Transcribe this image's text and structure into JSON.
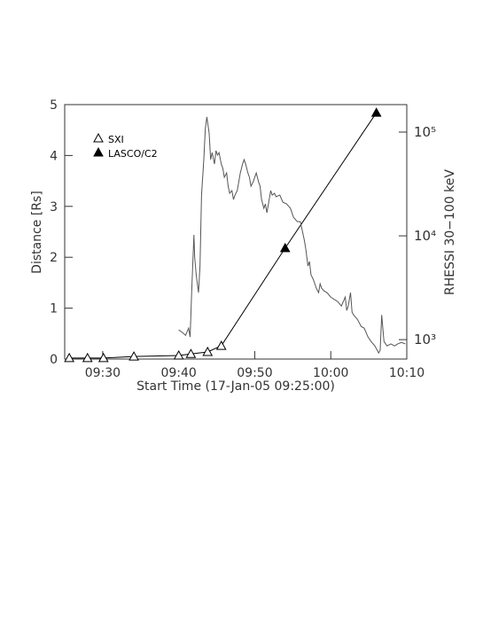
{
  "chart_data": {
    "type": "line",
    "x_label": "Start Time (17-Jan-05 09:25:00)",
    "y_label": "Distance [Rs]",
    "y2_label": "RHESSI 30−100 keV",
    "xlim": [
      0,
      45
    ],
    "xticks": [
      {
        "value": 5,
        "label": "09:30"
      },
      {
        "value": 15,
        "label": "09:40"
      },
      {
        "value": 25,
        "label": "09:50"
      },
      {
        "value": 35,
        "label": "10:00"
      },
      {
        "value": 45,
        "label": "10:10"
      }
    ],
    "ylim": [
      0,
      5
    ],
    "yticks": [
      0,
      1,
      2,
      3,
      4,
      5
    ],
    "y2lim": [
      650,
      184000
    ],
    "y2_scale": "log",
    "y2ticks": [
      {
        "value": 1000,
        "label": "10³"
      },
      {
        "value": 10000,
        "label": "10⁴"
      },
      {
        "value": 100000,
        "label": "10⁵"
      }
    ],
    "color": "#000000",
    "legend": "upper left",
    "series": [
      {
        "name": "SXI",
        "marker": "open-triangle",
        "color": "#000000",
        "x": [
          0.6,
          3.0,
          5.1,
          9.1,
          15.0,
          16.6,
          18.8,
          20.6
        ],
        "values": [
          0.02,
          0.02,
          0.02,
          0.05,
          0.07,
          0.1,
          0.14,
          0.26
        ]
      },
      {
        "name": "LASCO/C2",
        "marker": "filled-triangle",
        "color": "#000000",
        "x": [
          29.0,
          41.0
        ],
        "values": [
          2.18,
          4.84
        ]
      },
      {
        "axis": "y2",
        "color": "#555555",
        "x": [
          15.0,
          15.5,
          15.9,
          16.3,
          16.5,
          16.7,
          17.0,
          17.1,
          17.3,
          17.6,
          17.8,
          18.0,
          18.3,
          18.5,
          18.7,
          19.0,
          19.2,
          19.4,
          19.7,
          19.9,
          20.1,
          20.3,
          20.6,
          20.8,
          21.0,
          21.3,
          21.5,
          21.7,
          22.0,
          22.2,
          22.4,
          22.7,
          22.9,
          23.1,
          23.4,
          23.6,
          23.8,
          24.1,
          24.3,
          24.5,
          24.8,
          25.0,
          25.2,
          25.5,
          25.7,
          25.9,
          26.2,
          26.4,
          26.6,
          26.9,
          27.1,
          27.3,
          27.6,
          27.8,
          28.3,
          28.7,
          29.2,
          29.7,
          30.1,
          30.6,
          31.0,
          31.5,
          31.7,
          32.0,
          32.2,
          32.4,
          32.7,
          32.9,
          33.1,
          33.4,
          33.6,
          33.8,
          34.1,
          34.5,
          35.0,
          35.5,
          35.9,
          36.4,
          36.9,
          37.1,
          37.3,
          37.6,
          37.8,
          38.0,
          38.5,
          39.0,
          39.4,
          39.9,
          40.3,
          40.8,
          41.3,
          41.5,
          41.7,
          42.0,
          42.4,
          42.9,
          43.4,
          43.8,
          44.3,
          44.8
        ],
        "values": [
          1240,
          1170,
          1100,
          1290,
          1060,
          2840,
          10200,
          6240,
          4210,
          2840,
          5120,
          24700,
          54300,
          108000,
          140000,
          98000,
          54300,
          63500,
          49200,
          66200,
          60000,
          63500,
          49200,
          44700,
          36700,
          40400,
          30100,
          25700,
          27300,
          22400,
          24700,
          27300,
          33200,
          40400,
          49200,
          54300,
          49200,
          40400,
          36700,
          30100,
          33200,
          36700,
          40400,
          33200,
          30100,
          22400,
          18400,
          20300,
          16700,
          22400,
          27300,
          24700,
          25700,
          23800,
          24700,
          21100,
          20300,
          18400,
          15100,
          13700,
          13700,
          9250,
          7590,
          5120,
          5650,
          4210,
          3810,
          3450,
          3130,
          2840,
          3450,
          3130,
          2950,
          2840,
          2570,
          2430,
          2330,
          2110,
          2570,
          1910,
          2110,
          2840,
          1840,
          1730,
          1570,
          1340,
          1290,
          1060,
          960,
          870,
          745,
          790,
          1730,
          960,
          870,
          910,
          870,
          910,
          940,
          910
        ]
      }
    ]
  }
}
